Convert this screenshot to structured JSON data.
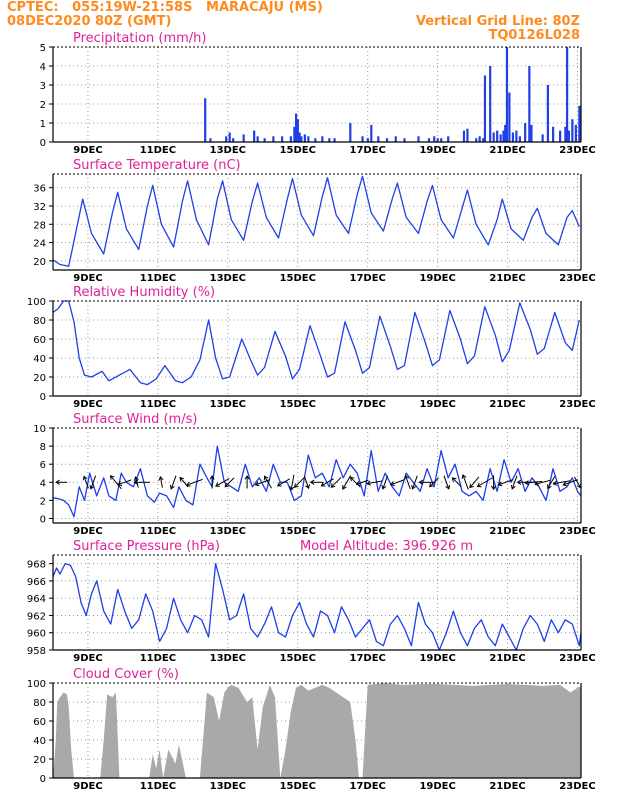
{
  "header": {
    "station_line": "CPTEC:   055:19W-21:58S   MARACAJU (MS)",
    "date_line": "08DEC2020 80Z (GMT)",
    "grid_note": "Vertical Grid Line: 80Z",
    "model_code": "TQ0126L028"
  },
  "model_altitude": "Model Altitude: 396.926 m",
  "date_labels": [
    "9DEC",
    "11DEC",
    "13DEC",
    "15DEC",
    "17DEC",
    "19DEC",
    "21DEC",
    "23DEC"
  ],
  "colors": {
    "header": "#ff8a1e",
    "panel_title": "#e0209a",
    "series_line": "#1f3fe8",
    "precip_bar": "#1f3fe8",
    "cloud_fill": "#a9a9a9",
    "wind_arrow": "#000000"
  },
  "chart_data": [
    {
      "type": "bar",
      "title": "Precipitation (mm/h)",
      "ylim": [
        0,
        5
      ],
      "yticks": [
        "0",
        "1",
        "2",
        "3",
        "4",
        "5"
      ],
      "x_range_days": [
        8.0,
        23.1
      ],
      "x": [
        12.35,
        12.5,
        12.95,
        13.05,
        13.15,
        13.45,
        13.75,
        13.85,
        14.05,
        14.3,
        14.55,
        14.8,
        14.9,
        14.95,
        15.0,
        15.05,
        15.1,
        15.2,
        15.3,
        15.5,
        15.7,
        15.9,
        16.05,
        16.5,
        16.85,
        17.0,
        17.1,
        17.3,
        17.55,
        17.8,
        18.05,
        18.45,
        18.75,
        18.9,
        19.0,
        19.1,
        19.3,
        19.75,
        19.85,
        20.1,
        20.2,
        20.3,
        20.35,
        20.5,
        20.6,
        20.7,
        20.8,
        20.88,
        20.93,
        20.98,
        21.05,
        21.15,
        21.25,
        21.35,
        21.5,
        21.62,
        21.68,
        22.0,
        22.15,
        22.3,
        22.5,
        22.65,
        22.7,
        22.75,
        22.85,
        22.95,
        23.05
      ],
      "values": [
        2.3,
        0.2,
        0.3,
        0.5,
        0.2,
        0.4,
        0.6,
        0.3,
        0.2,
        0.3,
        0.3,
        0.3,
        0.8,
        1.5,
        1.2,
        0.5,
        0.3,
        0.4,
        0.3,
        0.2,
        0.3,
        0.2,
        0.2,
        1.0,
        0.3,
        0.2,
        0.9,
        0.3,
        0.2,
        0.3,
        0.2,
        0.3,
        0.2,
        0.3,
        0.2,
        0.2,
        0.3,
        0.6,
        0.7,
        0.2,
        0.3,
        0.2,
        3.5,
        4.0,
        0.5,
        0.6,
        0.4,
        0.6,
        0.9,
        5.0,
        2.6,
        0.5,
        0.6,
        0.3,
        1.0,
        4.0,
        0.9,
        0.4,
        3.0,
        0.8,
        0.6,
        0.8,
        5.0,
        0.6,
        1.2,
        0.9,
        1.9
      ]
    },
    {
      "type": "line",
      "title": "Surface Temperature (nC)",
      "ylim": [
        18,
        39
      ],
      "yticks": [
        "20",
        "24",
        "28",
        "32",
        "36"
      ],
      "x_range_days": [
        8.0,
        23.1
      ],
      "x": [
        8.0,
        8.2,
        8.45,
        8.7,
        8.85,
        9.1,
        9.45,
        9.7,
        9.85,
        10.1,
        10.45,
        10.7,
        10.85,
        11.1,
        11.45,
        11.7,
        11.85,
        12.1,
        12.45,
        12.7,
        12.85,
        13.1,
        13.45,
        13.7,
        13.85,
        14.1,
        14.45,
        14.7,
        14.85,
        15.1,
        15.45,
        15.7,
        15.85,
        16.1,
        16.45,
        16.7,
        16.85,
        17.1,
        17.45,
        17.7,
        17.85,
        18.1,
        18.45,
        18.7,
        18.85,
        19.1,
        19.45,
        19.7,
        19.85,
        20.1,
        20.45,
        20.7,
        20.85,
        21.1,
        21.45,
        21.7,
        21.85,
        22.1,
        22.45,
        22.7,
        22.85,
        23.05
      ],
      "y": [
        20.2,
        19.2,
        18.8,
        28.0,
        33.5,
        26.0,
        21.5,
        30.5,
        35.0,
        27.0,
        22.5,
        32.0,
        36.5,
        28.0,
        23.0,
        33.0,
        37.5,
        29.0,
        23.5,
        33.5,
        37.5,
        29.0,
        24.5,
        33.0,
        37.0,
        29.5,
        25.0,
        33.5,
        38.0,
        30.0,
        25.5,
        34.0,
        38.2,
        30.0,
        26.0,
        34.5,
        38.5,
        30.5,
        26.5,
        33.5,
        37.0,
        29.5,
        26.0,
        33.0,
        36.5,
        29.0,
        25.0,
        31.5,
        35.5,
        28.0,
        23.5,
        29.0,
        33.5,
        27.0,
        24.5,
        29.5,
        31.5,
        26.0,
        23.5,
        29.5,
        31.0,
        27.5
      ]
    },
    {
      "type": "line",
      "title": "Relative Humidity (%)",
      "ylim": [
        0,
        100
      ],
      "yticks": [
        "0",
        "20",
        "40",
        "60",
        "80",
        "100"
      ],
      "x_range_days": [
        8.0,
        23.1
      ],
      "x": [
        8.0,
        8.15,
        8.3,
        8.45,
        8.6,
        8.75,
        8.9,
        9.1,
        9.4,
        9.6,
        9.9,
        10.2,
        10.5,
        10.7,
        10.95,
        11.2,
        11.5,
        11.7,
        11.95,
        12.2,
        12.45,
        12.65,
        12.85,
        13.05,
        13.4,
        13.65,
        13.85,
        14.05,
        14.35,
        14.65,
        14.85,
        15.05,
        15.35,
        15.65,
        15.85,
        16.05,
        16.35,
        16.65,
        16.85,
        17.05,
        17.35,
        17.65,
        17.85,
        18.05,
        18.35,
        18.65,
        18.85,
        19.05,
        19.35,
        19.65,
        19.85,
        20.05,
        20.35,
        20.65,
        20.85,
        21.05,
        21.35,
        21.65,
        21.85,
        22.05,
        22.35,
        22.65,
        22.85,
        23.05
      ],
      "y": [
        88,
        92,
        100,
        100,
        78,
        40,
        22,
        20,
        26,
        16,
        22,
        28,
        14,
        12,
        18,
        32,
        16,
        14,
        20,
        38,
        80,
        40,
        18,
        20,
        60,
        38,
        22,
        30,
        68,
        42,
        18,
        28,
        74,
        42,
        20,
        24,
        78,
        48,
        24,
        30,
        84,
        52,
        28,
        32,
        88,
        56,
        32,
        38,
        90,
        60,
        34,
        42,
        94,
        64,
        36,
        48,
        98,
        70,
        44,
        50,
        88,
        56,
        48,
        80
      ]
    },
    {
      "type": "line",
      "title": "Surface Wind (m/s)",
      "ylim": [
        -0.5,
        10
      ],
      "yticks": [
        "0",
        "2",
        "4",
        "6",
        "8",
        "10"
      ],
      "x_range_days": [
        8.0,
        23.1
      ],
      "x": [
        8.0,
        8.15,
        8.3,
        8.45,
        8.6,
        8.75,
        8.9,
        9.05,
        9.25,
        9.45,
        9.6,
        9.8,
        9.95,
        10.1,
        10.3,
        10.5,
        10.7,
        10.9,
        11.05,
        11.25,
        11.45,
        11.6,
        11.8,
        12.0,
        12.2,
        12.4,
        12.55,
        12.7,
        12.9,
        13.1,
        13.3,
        13.5,
        13.7,
        13.9,
        14.1,
        14.3,
        14.5,
        14.7,
        14.9,
        15.1,
        15.3,
        15.5,
        15.7,
        15.9,
        16.1,
        16.3,
        16.5,
        16.7,
        16.9,
        17.1,
        17.3,
        17.5,
        17.7,
        17.9,
        18.1,
        18.3,
        18.5,
        18.7,
        18.9,
        19.1,
        19.3,
        19.5,
        19.7,
        19.9,
        20.1,
        20.3,
        20.5,
        20.7,
        20.9,
        21.1,
        21.3,
        21.5,
        21.7,
        21.9,
        22.1,
        22.3,
        22.5,
        22.7,
        22.85,
        23.0,
        23.1
      ],
      "y": [
        2.3,
        2.2,
        2.0,
        1.5,
        0.2,
        3.5,
        2.0,
        5.0,
        2.5,
        4.5,
        2.5,
        2.0,
        5.0,
        4.0,
        3.5,
        5.5,
        2.5,
        1.8,
        2.8,
        2.5,
        1.2,
        3.5,
        2.0,
        1.5,
        6.0,
        4.5,
        3.5,
        8.0,
        4.0,
        3.5,
        3.0,
        6.0,
        3.5,
        4.5,
        3.0,
        6.0,
        4.0,
        4.0,
        2.0,
        2.5,
        7.0,
        4.5,
        5.0,
        3.5,
        6.5,
        4.5,
        6.0,
        5.0,
        2.5,
        7.5,
        3.0,
        5.0,
        3.5,
        2.5,
        5.0,
        4.0,
        3.0,
        5.5,
        3.5,
        7.5,
        4.5,
        6.0,
        3.0,
        2.5,
        3.0,
        2.0,
        5.5,
        3.0,
        6.5,
        4.0,
        5.5,
        3.0,
        4.5,
        3.5,
        2.0,
        5.5,
        3.0,
        3.5,
        4.5,
        3.0,
        2.5
      ],
      "arrows_day": [
        8.25,
        8.95,
        9.15,
        9.8,
        10.05,
        10.4,
        10.55,
        11.1,
        11.45,
        11.75,
        12.05,
        12.55,
        12.85,
        13.05,
        13.55,
        14.0,
        14.15,
        14.6,
        14.85,
        15.05,
        15.25,
        15.55,
        15.85,
        16.1,
        16.4,
        16.65,
        16.85,
        17.2,
        17.5,
        17.85,
        18.15,
        18.35,
        18.7,
        18.9,
        19.25,
        19.55,
        19.8,
        20.05,
        20.35,
        20.6,
        20.95,
        21.2,
        21.55,
        21.75,
        22.0,
        22.25,
        22.55,
        22.8,
        23.0
      ],
      "arrows_angle_deg": [
        180,
        110,
        250,
        130,
        200,
        105,
        180,
        100,
        250,
        130,
        200,
        90,
        210,
        225,
        90,
        200,
        120,
        210,
        260,
        225,
        290,
        180,
        210,
        225,
        240,
        135,
        200,
        190,
        250,
        200,
        110,
        250,
        180,
        225,
        290,
        135,
        110,
        230,
        210,
        270,
        200,
        250,
        180,
        185,
        195,
        240,
        190,
        200,
        300
      ],
      "arrows_speed": [
        2.0,
        2.5,
        3.0,
        4.0,
        3.0,
        2.0,
        3.5,
        2.0,
        3.0,
        2.5,
        4.0,
        2.5,
        3.5,
        2.5,
        2.5,
        3.5,
        3.0,
        3.0,
        3.5,
        3.0,
        2.5,
        2.5,
        3.0,
        3.0,
        3.5,
        3.0,
        2.5,
        3.5,
        3.0,
        3.0,
        3.0,
        3.0,
        3.5,
        2.5,
        3.0,
        2.5,
        3.5,
        3.0,
        4.0,
        3.0,
        3.5,
        3.0,
        4.5,
        4.0,
        3.5,
        3.0,
        4.0,
        3.5,
        2.5
      ]
    },
    {
      "type": "line",
      "title": "Surface Pressure (hPa)",
      "ylim": [
        958,
        969
      ],
      "yticks": [
        "958",
        "960",
        "962",
        "964",
        "966",
        "968"
      ],
      "x_range_days": [
        8.0,
        23.1
      ],
      "x": [
        8.0,
        8.1,
        8.2,
        8.35,
        8.5,
        8.65,
        8.8,
        8.95,
        9.1,
        9.25,
        9.45,
        9.65,
        9.85,
        10.05,
        10.25,
        10.45,
        10.65,
        10.85,
        11.05,
        11.25,
        11.45,
        11.65,
        11.85,
        12.05,
        12.25,
        12.45,
        12.65,
        12.85,
        13.05,
        13.25,
        13.45,
        13.65,
        13.85,
        14.05,
        14.25,
        14.45,
        14.65,
        14.85,
        15.05,
        15.25,
        15.45,
        15.65,
        15.85,
        16.05,
        16.25,
        16.45,
        16.65,
        16.85,
        17.05,
        17.25,
        17.45,
        17.65,
        17.85,
        18.05,
        18.25,
        18.45,
        18.65,
        18.85,
        19.05,
        19.25,
        19.45,
        19.65,
        19.85,
        20.05,
        20.25,
        20.45,
        20.65,
        20.85,
        21.05,
        21.25,
        21.45,
        21.65,
        21.85,
        22.05,
        22.25,
        22.45,
        22.65,
        22.85,
        23.05,
        23.1
      ],
      "y": [
        966.5,
        967.5,
        966.8,
        968.0,
        967.8,
        966.5,
        963.5,
        962.0,
        964.5,
        966.0,
        962.5,
        961.0,
        965.0,
        962.5,
        960.5,
        961.5,
        964.5,
        962.5,
        959.0,
        960.5,
        964.0,
        961.5,
        960.0,
        962.0,
        961.5,
        959.5,
        968.0,
        965.0,
        961.5,
        962.0,
        964.5,
        960.5,
        959.5,
        961.0,
        963.0,
        960.0,
        959.5,
        962.0,
        963.5,
        961.0,
        959.5,
        962.5,
        962.0,
        960.0,
        963.0,
        961.5,
        959.5,
        960.5,
        961.5,
        959.0,
        958.5,
        961.0,
        962.0,
        960.5,
        958.5,
        963.5,
        961.0,
        960.0,
        958.0,
        960.0,
        962.5,
        960.0,
        958.5,
        960.5,
        961.5,
        959.5,
        958.5,
        961.0,
        959.5,
        958.0,
        960.5,
        962.0,
        961.0,
        959.0,
        961.5,
        960.0,
        961.5,
        961.0,
        958.5,
        960.0
      ]
    },
    {
      "type": "area",
      "title": "Cloud Cover (%)",
      "ylim": [
        0,
        100
      ],
      "yticks": [
        "0",
        "20",
        "40",
        "60",
        "80",
        "100"
      ],
      "x_range_days": [
        8.0,
        23.1
      ],
      "x": [
        8.0,
        8.08,
        8.12,
        8.2,
        8.3,
        8.4,
        8.45,
        8.52,
        8.6,
        8.8,
        9.0,
        9.2,
        9.35,
        9.45,
        9.55,
        9.7,
        9.8,
        9.9,
        10.0,
        10.2,
        10.5,
        10.75,
        10.85,
        10.95,
        11.05,
        11.15,
        11.3,
        11.5,
        11.6,
        11.8,
        12.0,
        12.2,
        12.4,
        12.6,
        12.75,
        12.9,
        13.0,
        13.1,
        13.3,
        13.55,
        13.7,
        13.85,
        14.0,
        14.2,
        14.35,
        14.5,
        14.65,
        14.8,
        14.95,
        15.1,
        15.3,
        15.5,
        15.7,
        15.9,
        16.1,
        16.3,
        16.5,
        16.65,
        16.75,
        16.85,
        17.0,
        17.5,
        18.0,
        18.5,
        19.0,
        19.5,
        20.0,
        20.5,
        21.0,
        21.5,
        22.0,
        22.5,
        22.8,
        23.0,
        23.1
      ],
      "y": [
        0,
        40,
        80,
        85,
        90,
        88,
        75,
        30,
        0,
        0,
        0,
        0,
        0,
        40,
        88,
        85,
        90,
        0,
        0,
        0,
        0,
        0,
        25,
        10,
        30,
        0,
        30,
        15,
        35,
        0,
        0,
        0,
        90,
        85,
        60,
        90,
        95,
        98,
        95,
        80,
        85,
        30,
        75,
        98,
        85,
        0,
        30,
        70,
        95,
        98,
        92,
        95,
        98,
        95,
        90,
        85,
        80,
        40,
        0,
        0,
        98,
        100,
        98,
        99,
        99,
        98,
        97,
        98,
        99,
        98,
        97,
        98,
        90,
        95,
        96
      ]
    }
  ]
}
